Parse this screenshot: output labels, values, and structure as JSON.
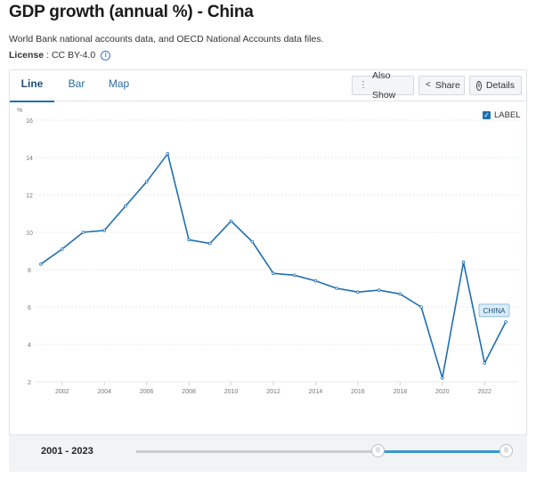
{
  "header": {
    "title": "GDP growth (annual %) - China",
    "source": "World Bank national accounts data, and OECD National Accounts data files.",
    "license_label": "License",
    "license_value": ": CC BY-4.0"
  },
  "tabs": [
    {
      "label": "Line"
    },
    {
      "label": "Bar"
    },
    {
      "label": "Map"
    }
  ],
  "toolbar": {
    "also_show": "Also Show",
    "share": "Share",
    "details": "Details"
  },
  "label_toggle": {
    "label": "LABEL",
    "checked": true
  },
  "footer": {
    "range_label": "2001 - 2023",
    "slider_start_fraction": 0.65,
    "slider_end_fraction": 1.0
  },
  "colors": {
    "line": "#1f6fb2",
    "accent": "#1f6fb2",
    "series_label_bg": "#d9ecf8"
  },
  "chart_data": {
    "type": "line",
    "ylabel": "%",
    "ylim": [
      2,
      16
    ],
    "yticks": [
      2,
      4,
      6,
      8,
      10,
      12,
      14,
      16
    ],
    "xlim": [
      2001,
      2023
    ],
    "xticks": [
      2002,
      2004,
      2006,
      2008,
      2010,
      2012,
      2014,
      2016,
      2018,
      2020,
      2022
    ],
    "grid": true,
    "series": [
      {
        "name": "CHINA",
        "x": [
          2001,
          2002,
          2003,
          2004,
          2005,
          2006,
          2007,
          2008,
          2009,
          2010,
          2011,
          2012,
          2013,
          2014,
          2015,
          2016,
          2017,
          2018,
          2019,
          2020,
          2021,
          2022,
          2023
        ],
        "values": [
          8.3,
          9.1,
          10.0,
          10.1,
          11.4,
          12.7,
          14.2,
          9.6,
          9.4,
          10.6,
          9.5,
          7.8,
          7.7,
          7.4,
          7.0,
          6.8,
          6.9,
          6.7,
          6.0,
          2.2,
          8.4,
          3.0,
          5.2
        ]
      }
    ]
  }
}
